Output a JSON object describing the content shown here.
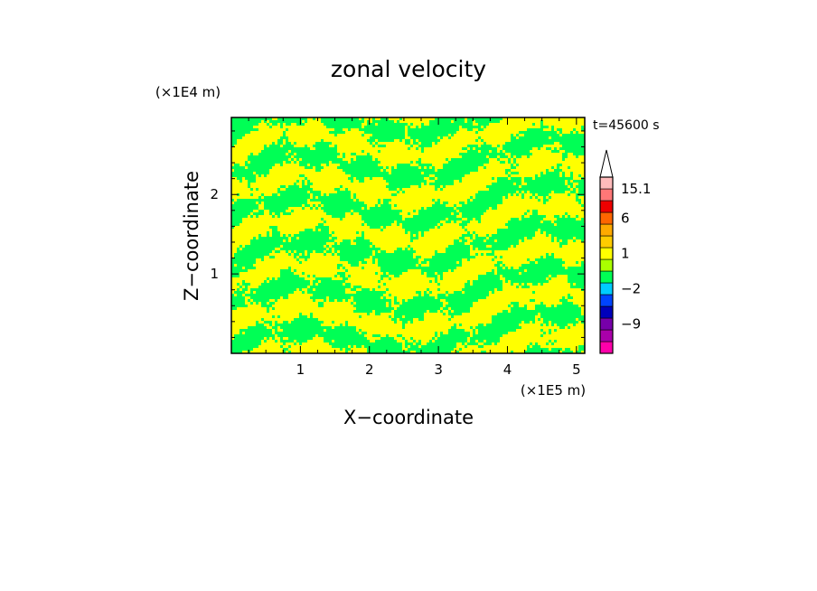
{
  "chart_data": {
    "type": "heatmap",
    "title": "zonal velocity",
    "xlabel": "X−coordinate",
    "ylabel": "Z−coordinate",
    "x_scale_label": "(×1E5 m)",
    "y_scale_label": "(×1E4 m)",
    "time_label": "t=45600 s",
    "xlim": [
      0,
      5.12
    ],
    "ylim": [
      0,
      2.97
    ],
    "x_ticks": [
      1,
      2,
      3,
      4,
      5
    ],
    "x_tick_labels": [
      "1",
      "2",
      "3",
      "4",
      "5"
    ],
    "y_ticks": [
      1,
      2
    ],
    "y_tick_labels": [
      "1",
      "2"
    ],
    "field_colors": {
      "positive": "#ffff00",
      "negative": "#00ff55"
    },
    "colorbar": {
      "levels": [
        {
          "color": "#ff00aa"
        },
        {
          "color": "#aa00aa"
        },
        {
          "color": "#7700aa"
        },
        {
          "color": "#0000bb"
        },
        {
          "color": "#0044ff"
        },
        {
          "color": "#00ccff"
        },
        {
          "color": "#00ff55"
        },
        {
          "color": "#aaff00"
        },
        {
          "color": "#ffff00"
        },
        {
          "color": "#ffcc00"
        },
        {
          "color": "#ffaa00"
        },
        {
          "color": "#ff6600"
        },
        {
          "color": "#ee0000"
        },
        {
          "color": "#ff7777"
        },
        {
          "color": "#ffbbbb"
        }
      ],
      "labels": [
        {
          "value": "15.1",
          "level": 14
        },
        {
          "value": "6",
          "level": 11.5
        },
        {
          "value": "1",
          "level": 8.5
        },
        {
          "value": "−2",
          "level": 5.5
        },
        {
          "value": "−9",
          "level": 2.5
        }
      ]
    }
  }
}
